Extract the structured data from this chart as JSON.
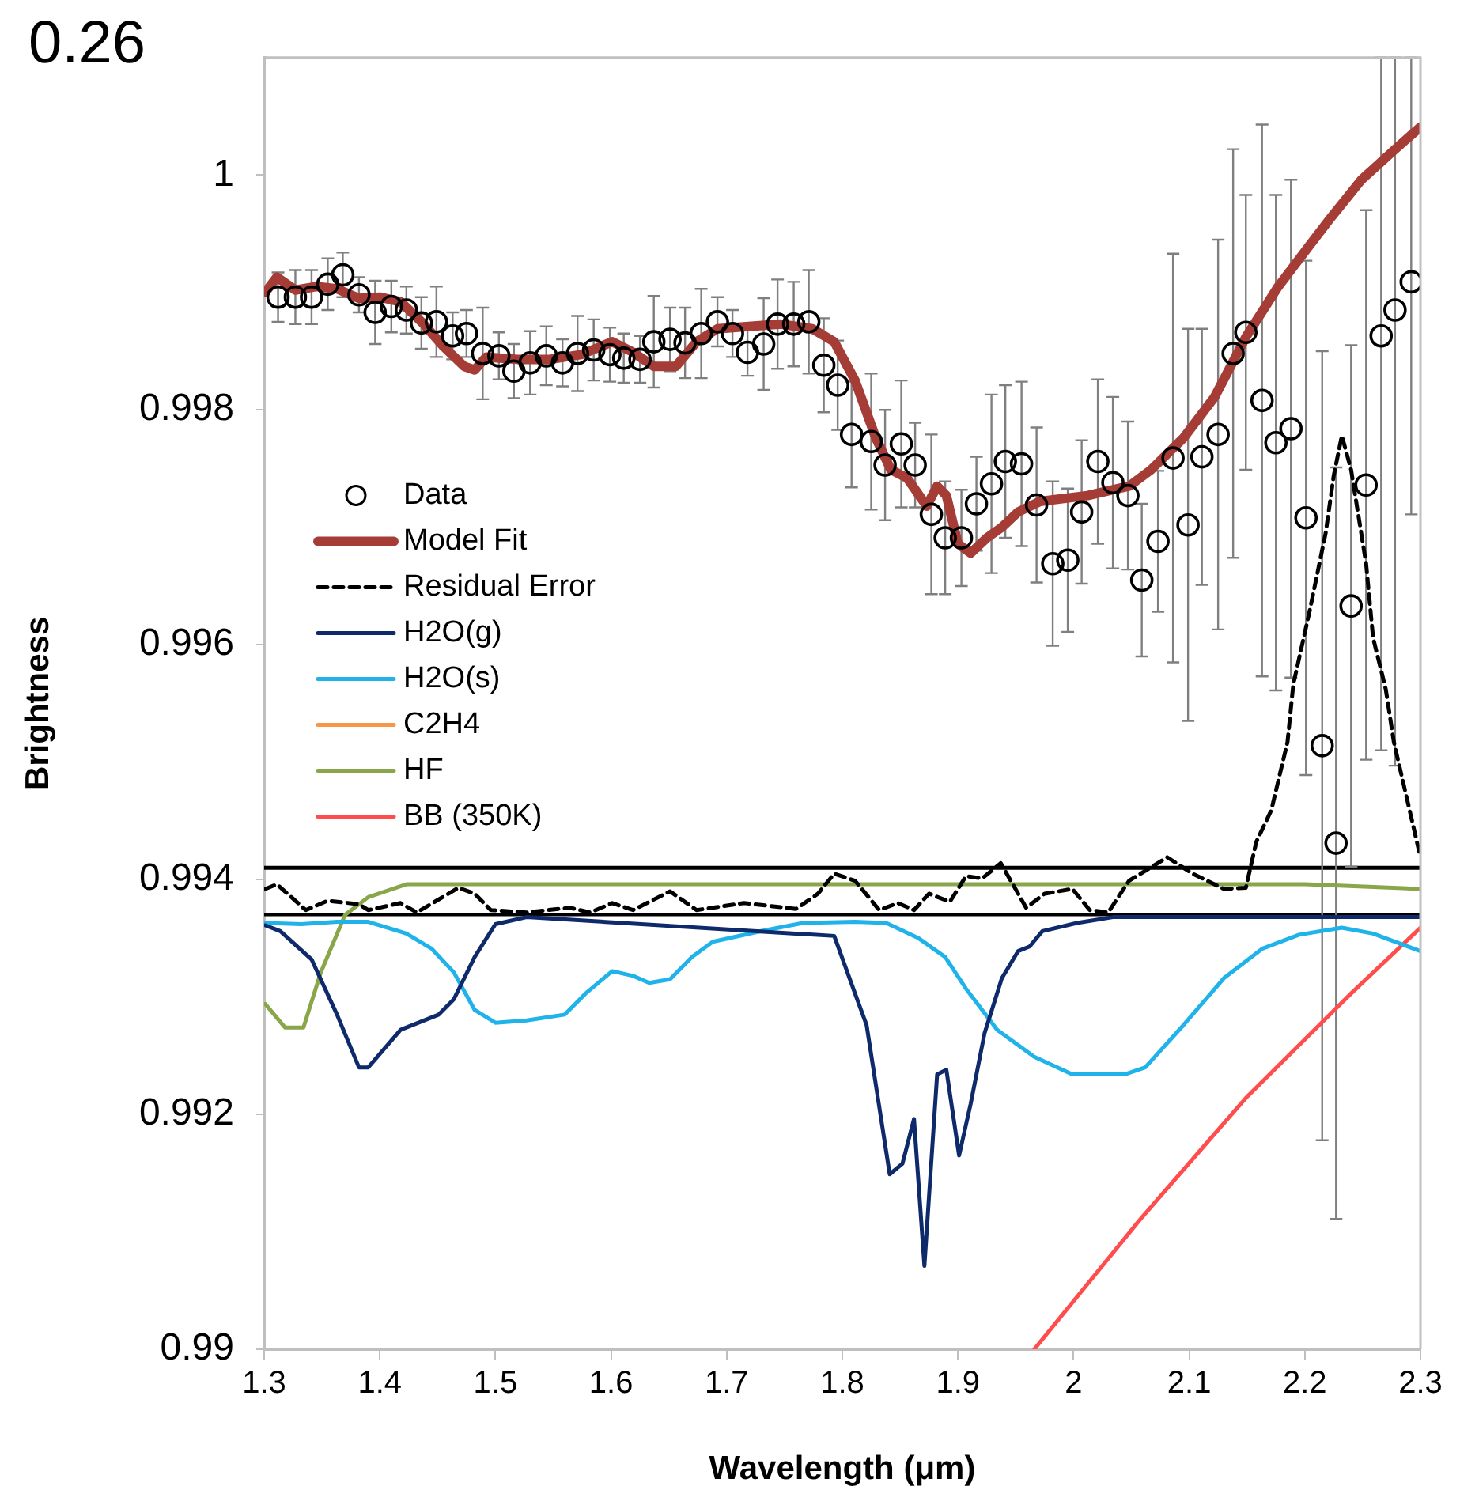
{
  "chart_data": {
    "type": "line",
    "title": "0.26",
    "xlabel": "Wavelength (μm)",
    "ylabel": "Brightness",
    "xlim": [
      1.3,
      2.3
    ],
    "xticks": [
      1.3,
      1.4,
      1.5,
      1.6,
      1.7,
      1.8,
      1.9,
      2,
      2.1,
      2.2,
      2.3
    ],
    "ylim": [
      0.99,
      1.001
    ],
    "yticks": [
      0.99,
      0.992,
      0.994,
      0.996,
      0.998,
      1
    ],
    "legend": "left",
    "ref_lines": [
      {
        "axis": "y",
        "value": 0.9941,
        "color": "#000000"
      },
      {
        "axis": "y",
        "value": 0.9937,
        "color": "#000000"
      }
    ],
    "series": [
      {
        "name": "Data",
        "type": "scatter",
        "marker": "circle",
        "color": "#000000",
        "x": [
          1.312,
          1.327,
          1.341,
          1.355,
          1.368,
          1.382,
          1.396,
          1.41,
          1.423,
          1.436,
          1.449,
          1.463,
          1.475,
          1.489,
          1.503,
          1.516,
          1.53,
          1.544,
          1.558,
          1.571,
          1.585,
          1.599,
          1.611,
          1.625,
          1.637,
          1.651,
          1.664,
          1.678,
          1.692,
          1.705,
          1.718,
          1.732,
          1.744,
          1.758,
          1.771,
          1.784,
          1.796,
          1.808,
          1.825,
          1.837,
          1.851,
          1.863,
          1.877,
          1.889,
          1.903,
          1.916,
          1.929,
          1.941,
          1.955,
          1.968,
          1.982,
          1.995,
          2.007,
          2.021,
          2.034,
          2.047,
          2.059,
          2.073,
          2.086,
          2.099,
          2.111,
          2.125,
          2.138,
          2.149,
          2.163,
          2.175,
          2.188,
          2.201,
          2.215,
          2.227,
          2.24,
          2.253,
          2.266,
          2.278,
          2.292
        ],
        "values": [
          0.99896,
          0.99896,
          0.99896,
          0.99907,
          0.99915,
          0.99898,
          0.99883,
          0.99888,
          0.99885,
          0.99874,
          0.99875,
          0.99863,
          0.99865,
          0.99848,
          0.99846,
          0.99833,
          0.9984,
          0.99846,
          0.9984,
          0.99848,
          0.99851,
          0.99847,
          0.99844,
          0.99843,
          0.99858,
          0.9986,
          0.99857,
          0.99865,
          0.99875,
          0.99865,
          0.99849,
          0.99856,
          0.99873,
          0.99873,
          0.99875,
          0.99838,
          0.99821,
          0.99779,
          0.99773,
          0.99753,
          0.99771,
          0.99753,
          0.99711,
          0.99691,
          0.99691,
          0.9972,
          0.99737,
          0.99756,
          0.99754,
          0.99719,
          0.99669,
          0.99672,
          0.99713,
          0.99756,
          0.99738,
          0.99727,
          0.99655,
          0.99688,
          0.99759,
          0.99702,
          0.9976,
          0.99779,
          0.99848,
          0.99866,
          0.99808,
          0.99772,
          0.99784,
          0.99708,
          0.99514,
          0.99431,
          0.99633,
          0.99736,
          0.99863,
          0.99885,
          0.99909
        ],
        "errors": [
          0.00021,
          0.00023,
          0.00023,
          0.00022,
          0.00019,
          0.00015,
          0.00027,
          0.00022,
          0.0002,
          0.00022,
          0.0003,
          0.0002,
          0.0002,
          0.00039,
          0.0002,
          0.00023,
          0.00027,
          0.00025,
          0.0002,
          0.00032,
          0.00026,
          0.00023,
          0.00021,
          0.0002,
          0.00039,
          0.00027,
          0.0003,
          0.00038,
          0.00021,
          0.0002,
          0.0002,
          0.00039,
          0.00038,
          0.00036,
          0.00044,
          0.0004,
          0.00038,
          0.00045,
          0.00058,
          0.00047,
          0.00054,
          0.00036,
          0.00068,
          0.00048,
          0.00041,
          0.0004,
          0.00076,
          0.00065,
          0.0007,
          0.00066,
          0.0007,
          0.00061,
          0.00061,
          0.0007,
          0.00073,
          0.00063,
          0.00065,
          0.0006,
          0.00174,
          0.00167,
          0.00109,
          0.00166,
          0.00174,
          0.00117,
          0.00235,
          0.00211,
          0.00212,
          0.00219,
          0.00336,
          0.0032,
          0.00222,
          0.00234,
          [
            0.9951,
            1.001
          ],
          [
            0.99497,
            1.001
          ],
          [
            0.99711,
            1.001
          ]
        ]
      },
      {
        "name": "Model Fit",
        "color": "#a63c36",
        "x": [
          1.301,
          1.311,
          1.327,
          1.345,
          1.363,
          1.382,
          1.4,
          1.418,
          1.437,
          1.455,
          1.473,
          1.482,
          1.492,
          1.519,
          1.547,
          1.574,
          1.601,
          1.619,
          1.637,
          1.656,
          1.674,
          1.692,
          1.719,
          1.747,
          1.774,
          1.793,
          1.811,
          1.829,
          1.842,
          1.856,
          1.873,
          1.882,
          1.89,
          1.9,
          1.911,
          1.925,
          1.938,
          1.952,
          1.971,
          2.012,
          2.048,
          2.067,
          2.095,
          2.122,
          2.149,
          2.177,
          2.204,
          2.222,
          2.249,
          2.277,
          2.3
        ],
        "values": [
          0.999,
          0.99913,
          0.99902,
          0.99905,
          0.99903,
          0.99895,
          0.99896,
          0.99892,
          0.99874,
          0.99854,
          0.99837,
          0.99834,
          0.99845,
          0.99843,
          0.99843,
          0.99847,
          0.99858,
          0.99849,
          0.99837,
          0.99837,
          0.99858,
          0.99869,
          0.99871,
          0.99873,
          0.99869,
          0.99858,
          0.99825,
          0.99776,
          0.99749,
          0.99742,
          0.99718,
          0.99735,
          0.99727,
          0.99686,
          0.99678,
          0.99691,
          0.997,
          0.99713,
          0.99722,
          0.99727,
          0.99735,
          0.99749,
          0.99776,
          0.99811,
          0.99862,
          0.99905,
          0.9994,
          0.99963,
          0.99996,
          1.00021,
          1.00041
        ]
      },
      {
        "name": "Residual Error",
        "line_style": "dashed",
        "color": "#000000",
        "x": [
          1.301,
          1.311,
          1.336,
          1.355,
          1.382,
          1.39,
          1.418,
          1.432,
          1.468,
          1.482,
          1.496,
          1.527,
          1.564,
          1.582,
          1.601,
          1.619,
          1.651,
          1.674,
          1.715,
          1.76,
          1.779,
          1.793,
          1.811,
          1.832,
          1.848,
          1.862,
          1.875,
          1.893,
          1.907,
          1.921,
          1.937,
          1.959,
          1.975,
          1.999,
          2.014,
          2.03,
          2.048,
          2.081,
          2.103,
          2.13,
          2.149,
          2.158,
          2.171,
          2.185,
          2.19,
          2.204,
          2.218,
          2.225,
          2.232,
          2.24,
          2.253,
          2.259,
          2.27,
          2.277,
          2.3
        ],
        "values": [
          0.99392,
          0.99396,
          0.99374,
          0.99382,
          0.99379,
          0.99374,
          0.9938,
          0.99372,
          0.99393,
          0.99388,
          0.99374,
          0.99372,
          0.99376,
          0.99372,
          0.9938,
          0.99374,
          0.9939,
          0.99374,
          0.9938,
          0.99375,
          0.99388,
          0.99405,
          0.99399,
          0.99374,
          0.9938,
          0.99374,
          0.99388,
          0.99381,
          0.99403,
          0.99401,
          0.99414,
          0.99376,
          0.99388,
          0.99392,
          0.99374,
          0.99372,
          0.99399,
          0.99419,
          0.99405,
          0.99392,
          0.99393,
          0.99432,
          0.99459,
          0.99517,
          0.99566,
          0.99628,
          0.99695,
          0.99744,
          0.99778,
          0.99749,
          0.99669,
          0.99606,
          0.99562,
          0.99517,
          0.99419
        ]
      },
      {
        "name": "H2O(g)",
        "color": "#0f2a6b",
        "x": [
          1.301,
          1.314,
          1.341,
          1.363,
          1.382,
          1.39,
          1.418,
          1.451,
          1.464,
          1.482,
          1.5,
          1.527,
          1.793,
          1.811,
          1.821,
          1.841,
          1.852,
          1.862,
          1.871,
          1.882,
          1.89,
          1.901,
          1.911,
          1.923,
          1.938,
          1.952,
          1.962,
          1.973,
          2.003,
          2.034,
          2.3
        ],
        "values": [
          0.99361,
          0.99356,
          0.99332,
          0.99285,
          0.9924,
          0.9924,
          0.99272,
          0.99285,
          0.99298,
          0.99334,
          0.99362,
          0.99368,
          0.99352,
          0.99303,
          0.99276,
          0.99149,
          0.99158,
          0.99196,
          0.99071,
          0.99234,
          0.99238,
          0.99165,
          0.99209,
          0.99269,
          0.99316,
          0.99339,
          0.99343,
          0.99356,
          0.99363,
          0.99368,
          0.99368
        ]
      },
      {
        "name": "H2O(s)",
        "color": "#1fb3ea",
        "x": [
          1.301,
          1.332,
          1.363,
          1.39,
          1.423,
          1.445,
          1.464,
          1.482,
          1.5,
          1.527,
          1.56,
          1.578,
          1.601,
          1.619,
          1.633,
          1.651,
          1.67,
          1.688,
          1.729,
          1.766,
          1.811,
          1.838,
          1.866,
          1.889,
          1.907,
          1.934,
          1.966,
          1.999,
          2.044,
          2.062,
          2.095,
          2.13,
          2.163,
          2.195,
          2.232,
          2.259,
          2.3
        ],
        "values": [
          0.99363,
          0.99362,
          0.99364,
          0.99364,
          0.99354,
          0.99341,
          0.99321,
          0.99289,
          0.99278,
          0.9928,
          0.99285,
          0.99303,
          0.99322,
          0.99318,
          0.99312,
          0.99315,
          0.99334,
          0.99347,
          0.99356,
          0.99363,
          0.99364,
          0.99363,
          0.9935,
          0.99334,
          0.99307,
          0.99272,
          0.99249,
          0.99234,
          0.99234,
          0.9924,
          0.99276,
          0.99316,
          0.99341,
          0.99353,
          0.99359,
          0.99354,
          0.99339
        ]
      },
      {
        "name": "C2H4",
        "color": "#f79646"
      },
      {
        "name": "HF",
        "color": "#8aa64a",
        "x": [
          1.301,
          1.318,
          1.334,
          1.349,
          1.37,
          1.39,
          1.423,
          2.2,
          2.3
        ],
        "values": [
          0.99294,
          0.99274,
          0.99274,
          0.99321,
          0.9937,
          0.99385,
          0.99396,
          0.99396,
          0.99392
        ]
      },
      {
        "name": "BB (350K)",
        "color": "#ff4d4d",
        "x": [
          1.966,
          2.058,
          2.149,
          2.24,
          2.3
        ],
        "values": [
          0.99,
          0.99111,
          0.99214,
          0.99303,
          0.99359
        ]
      }
    ]
  }
}
